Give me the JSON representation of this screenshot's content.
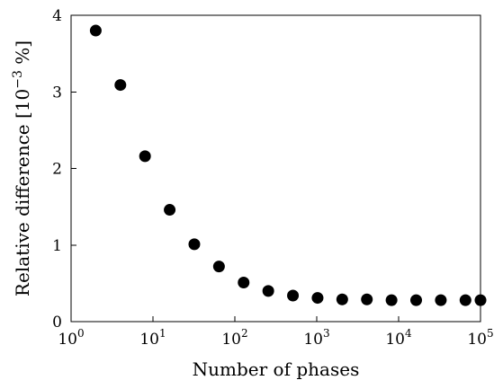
{
  "chart_data": {
    "type": "scatter",
    "x_scale": "log",
    "xlabel": "Number of phases",
    "ylabel": "Relative difference [10",
    "ylabel_sup": "−3",
    "ylabel_unit": " %]",
    "xlim": [
      1,
      100000
    ],
    "ylim": [
      0,
      4
    ],
    "x_tick_base": "10",
    "x_ticks": [
      {
        "value": 1,
        "exp": "0"
      },
      {
        "value": 10,
        "exp": "1"
      },
      {
        "value": 100,
        "exp": "2"
      },
      {
        "value": 1000,
        "exp": "3"
      },
      {
        "value": 10000,
        "exp": "4"
      },
      {
        "value": 100000,
        "exp": "5"
      }
    ],
    "y_ticks": [
      {
        "value": 0,
        "label": "0"
      },
      {
        "value": 1,
        "label": "1"
      },
      {
        "value": 2,
        "label": "2"
      },
      {
        "value": 3,
        "label": "3"
      },
      {
        "value": 4,
        "label": "4"
      }
    ],
    "grid": false,
    "marker_color": "#000000",
    "points": [
      {
        "x": 2,
        "y": 3.8
      },
      {
        "x": 4,
        "y": 3.09
      },
      {
        "x": 8,
        "y": 2.16
      },
      {
        "x": 16,
        "y": 1.46
      },
      {
        "x": 32,
        "y": 1.01
      },
      {
        "x": 64,
        "y": 0.72
      },
      {
        "x": 128,
        "y": 0.51
      },
      {
        "x": 256,
        "y": 0.4
      },
      {
        "x": 512,
        "y": 0.34
      },
      {
        "x": 1024,
        "y": 0.31
      },
      {
        "x": 2048,
        "y": 0.29
      },
      {
        "x": 4096,
        "y": 0.29
      },
      {
        "x": 8192,
        "y": 0.28
      },
      {
        "x": 16384,
        "y": 0.28
      },
      {
        "x": 32768,
        "y": 0.28
      },
      {
        "x": 65536,
        "y": 0.28
      },
      {
        "x": 100000,
        "y": 0.28
      }
    ]
  }
}
